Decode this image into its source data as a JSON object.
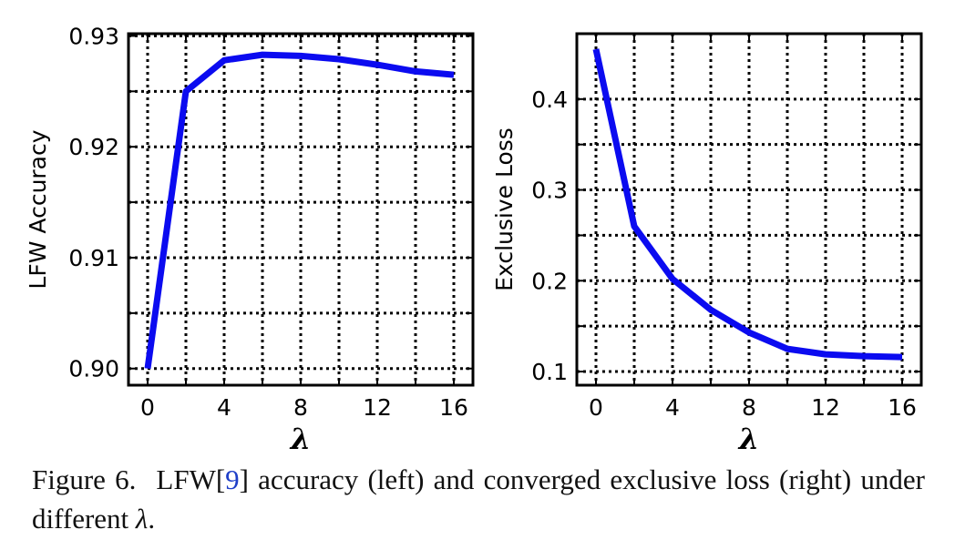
{
  "chart_data": [
    {
      "type": "line",
      "ylabel": "LFW Accuracy",
      "xlabel": "λ",
      "xlim": [
        -1,
        17
      ],
      "ylim": [
        0.8985,
        0.9302
      ],
      "xticks": [
        0,
        4,
        8,
        12,
        16
      ],
      "xtick_labels": [
        "0",
        "4",
        "8",
        "12",
        "16"
      ],
      "yticks": [
        0.9,
        0.91,
        0.92,
        0.93
      ],
      "ytick_labels": [
        "0.90",
        "0.91",
        "0.92",
        "0.93"
      ],
      "grid": true,
      "color": "#0b0bf0",
      "x": [
        0,
        2,
        4,
        6,
        8,
        10,
        12,
        14,
        16
      ],
      "y": [
        0.9,
        0.925,
        0.9278,
        0.9283,
        0.9282,
        0.9279,
        0.9274,
        0.9268,
        0.9265
      ]
    },
    {
      "type": "line",
      "ylabel": "Exclusive Loss",
      "xlabel": "λ",
      "xlim": [
        -1,
        17
      ],
      "ylim": [
        0.085,
        0.472
      ],
      "xticks": [
        0,
        4,
        8,
        12,
        16
      ],
      "xtick_labels": [
        "0",
        "4",
        "8",
        "12",
        "16"
      ],
      "yticks": [
        0.1,
        0.2,
        0.3,
        0.4
      ],
      "ytick_labels": [
        "0.1",
        "0.2",
        "0.3",
        "0.4"
      ],
      "grid": true,
      "color": "#0b0bf0",
      "x": [
        0,
        2,
        4,
        6,
        8,
        10,
        12,
        14,
        16
      ],
      "y": [
        0.455,
        0.26,
        0.202,
        0.168,
        0.143,
        0.125,
        0.119,
        0.117,
        0.116
      ]
    }
  ],
  "caption": {
    "prefix": "Figure 6.",
    "text_before_ref": "LFW[",
    "ref": "9",
    "text_after_ref": "] accuracy (left) and converged exclusive loss (right) under different ",
    "symbol": "λ",
    "end": "."
  }
}
